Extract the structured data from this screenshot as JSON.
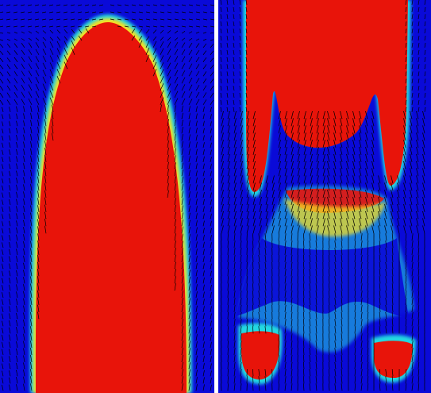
{
  "colors": {
    "field_low": "#0a0ad8",
    "field_high": "#e8140a",
    "mid_cyan": "#22d8e0",
    "mid_yellow": "#f5e020",
    "vectors": "#000000",
    "separator": "#ffffff"
  },
  "panels": [
    {
      "name": "left-panel",
      "description_kind": "single rising bubble with velocity vectors"
    },
    {
      "name": "right-panel",
      "description_kind": "bubble breakup with velocity vectors"
    }
  ]
}
